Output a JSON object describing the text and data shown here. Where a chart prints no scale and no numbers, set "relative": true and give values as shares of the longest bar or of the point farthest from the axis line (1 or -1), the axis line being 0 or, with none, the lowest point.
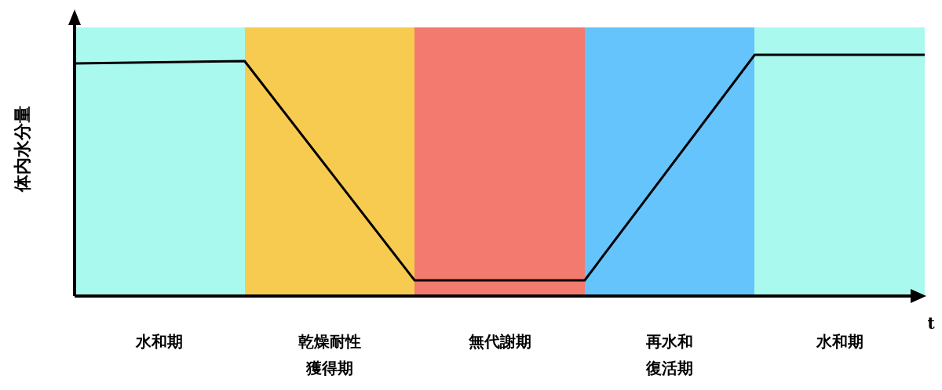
{
  "chart_data": {
    "type": "line",
    "relative": true,
    "ylabel": "体内水分量",
    "xlabel": "t",
    "line_style": "solid",
    "categories": [
      null,
      null,
      null,
      null,
      null,
      null
    ],
    "series": [
      {
        "color": "#000000",
        "values": [
          0.964,
          0.974,
          0.065,
          0.065,
          1,
          1
        ]
      }
    ],
    "annotations": [
      "水和期",
      "乾燥耐性獲得期",
      "無代謝期",
      "再水和復活期",
      "水和期"
    ]
  }
}
